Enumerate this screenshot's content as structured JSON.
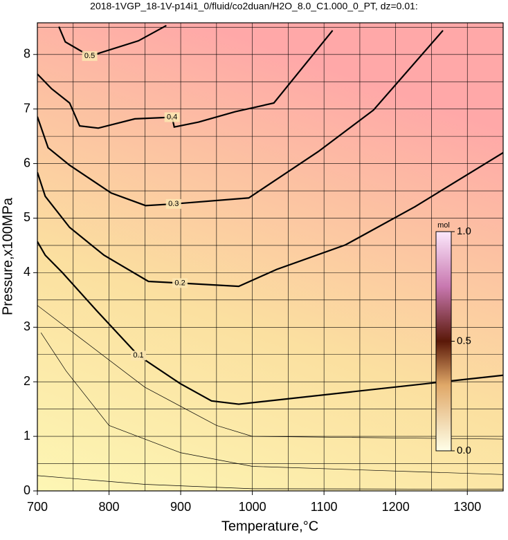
{
  "chart_data": {
    "type": "contour",
    "title": "2018-1VGP_18-1V-p14i1_0/fluid/co2duan/H2O_8.0_C1.000_0_PT, dz=0.01:",
    "xlabel": "Temperature,°C",
    "ylabel": "Pressure,x100MPa",
    "xlim": [
      700,
      1350
    ],
    "ylim": [
      0,
      8.58
    ],
    "xticks": [
      700,
      800,
      900,
      1000,
      1100,
      1200,
      1300
    ],
    "yticks": [
      0,
      1,
      2,
      3,
      4,
      5,
      6,
      7,
      8
    ],
    "xgrid": [
      750,
      800,
      850,
      900,
      950,
      1000,
      1050,
      1100,
      1150,
      1200,
      1250,
      1300
    ],
    "ygrid": [
      0.5,
      1,
      1.5,
      2,
      2.5,
      3,
      3.5,
      4,
      4.5,
      5,
      5.5,
      6,
      6.5,
      7,
      7.5,
      8,
      8.5
    ],
    "contours": [
      {
        "level": 0.1,
        "x": [
          700,
          711,
          735,
          783,
          841,
          899,
          943,
          981,
          1350
        ],
        "y": [
          4.57,
          4.32,
          4.0,
          3.3,
          2.48,
          1.97,
          1.65,
          1.59,
          2.12
        ]
      },
      {
        "level": 0.2,
        "x": [
          700,
          711,
          745,
          793,
          855,
          899,
          981,
          1034,
          1130,
          1227,
          1350
        ],
        "y": [
          5.84,
          5.4,
          4.83,
          4.32,
          3.84,
          3.81,
          3.75,
          4.06,
          4.51,
          5.21,
          6.2
        ]
      },
      {
        "level": 0.3,
        "x": [
          700,
          715,
          745,
          803,
          851,
          890,
          995,
          1092,
          1169,
          1266
        ],
        "y": [
          6.86,
          6.29,
          5.97,
          5.46,
          5.23,
          5.26,
          5.37,
          6.22,
          6.98,
          8.44
        ]
      },
      {
        "level": 0.4,
        "x": [
          700,
          720,
          745,
          759,
          785,
          836,
          888,
          891,
          925,
          976,
          1030,
          1112
        ],
        "y": [
          7.64,
          7.37,
          7.11,
          6.69,
          6.65,
          6.82,
          6.85,
          6.67,
          6.76,
          6.95,
          7.11,
          8.44
        ]
      },
      {
        "level": 0.5,
        "x": [
          730,
          739,
          773,
          841,
          880
        ],
        "y": [
          8.51,
          8.23,
          7.97,
          8.25,
          8.53
        ]
      }
    ],
    "thin_contours": [
      {
        "x": [
          700,
          850,
          1000,
          1350
        ],
        "y": [
          0.28,
          0.12,
          0.04,
          0.03
        ]
      },
      {
        "x": [
          705,
          740,
          800,
          900,
          1000,
          1350
        ],
        "y": [
          2.9,
          2.2,
          1.2,
          0.7,
          0.45,
          0.3
        ]
      },
      {
        "x": [
          700,
          760,
          850,
          950,
          1000,
          1350
        ],
        "y": [
          3.4,
          2.8,
          1.9,
          1.2,
          1.0,
          0.95
        ]
      }
    ],
    "colorbar": {
      "label": "mol",
      "lim": [
        0,
        1
      ],
      "ticks": [
        {
          "value": 0,
          "label": "0.0"
        },
        {
          "value": 0.5,
          "label": "0.5"
        },
        {
          "value": 1,
          "label": "1.0"
        }
      ]
    }
  }
}
